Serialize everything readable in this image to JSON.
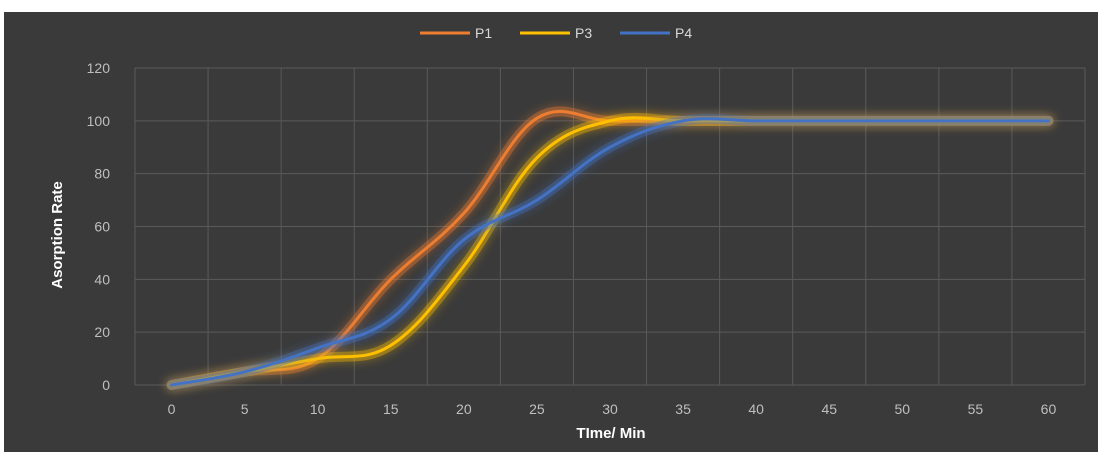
{
  "chart_data": {
    "type": "line",
    "xlabel": "TIme/ Min",
    "ylabel": "Asorption Rate",
    "x": [
      0,
      5,
      10,
      15,
      20,
      25,
      30,
      35,
      40,
      45,
      50,
      55,
      60
    ],
    "xlim": [
      0,
      60
    ],
    "ylim": [
      0,
      120
    ],
    "y_ticks": [
      0,
      20,
      40,
      60,
      80,
      100,
      120
    ],
    "grid": true,
    "legend_position": "top",
    "series": [
      {
        "name": "P1",
        "color": "#ed7d31",
        "values": [
          0,
          5,
          10,
          40,
          65,
          101,
          100,
          100,
          100,
          100,
          100,
          100,
          100
        ]
      },
      {
        "name": "P3",
        "color": "#ffc000",
        "values": [
          0,
          5,
          10,
          15,
          45,
          86,
          100,
          100,
          100,
          100,
          100,
          100,
          100
        ]
      },
      {
        "name": "P4",
        "color": "#4472c4",
        "values": [
          0,
          5,
          14,
          25,
          55,
          70,
          90,
          100,
          100,
          100,
          100,
          100,
          100
        ]
      }
    ]
  }
}
